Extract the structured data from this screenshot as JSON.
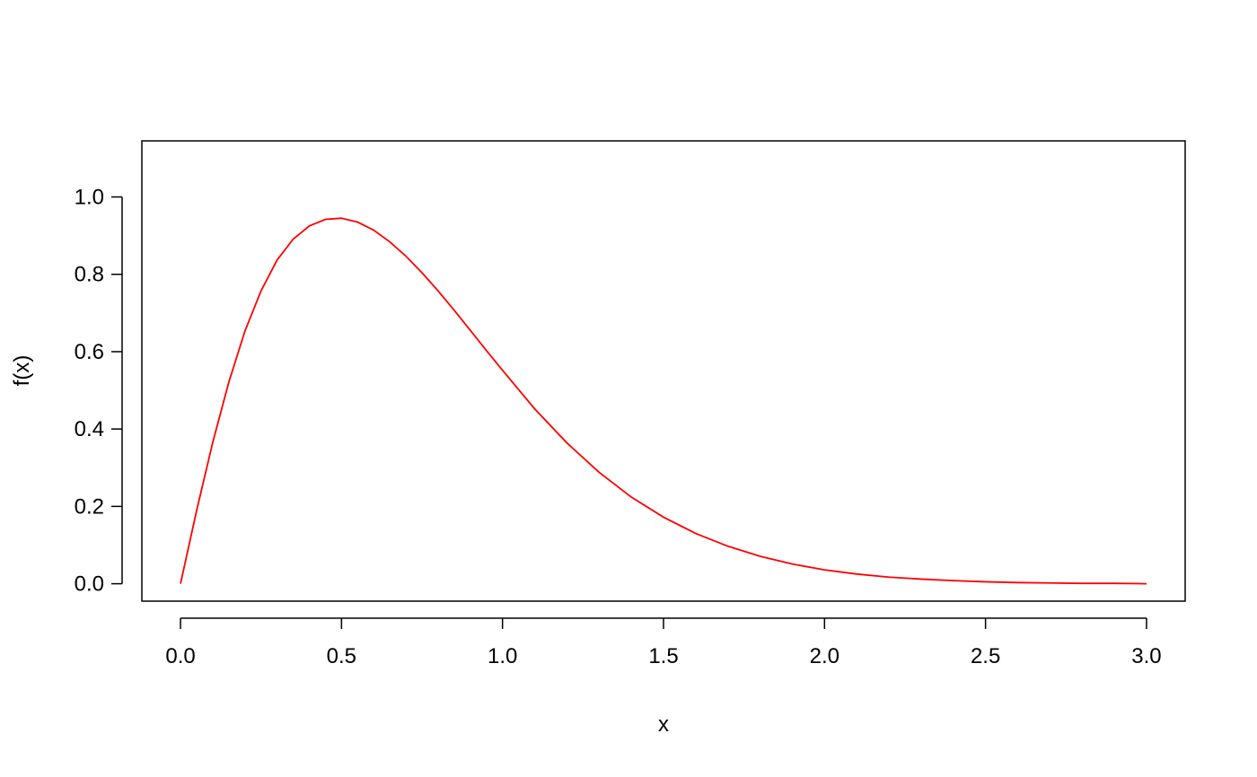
{
  "chart_data": {
    "type": "line",
    "title": "",
    "xlabel": "x",
    "ylabel": "f(x)",
    "xlim": [
      -0.12,
      3.12
    ],
    "ylim": [
      -0.045,
      1.145
    ],
    "x_ticks": [
      0.0,
      0.5,
      1.0,
      1.5,
      2.0,
      2.5,
      3.0
    ],
    "x_tick_labels": [
      "0.0",
      "0.5",
      "1.0",
      "1.5",
      "2.0",
      "2.5",
      "3.0"
    ],
    "y_ticks": [
      0.0,
      0.2,
      0.4,
      0.6,
      0.8,
      1.0
    ],
    "y_tick_labels": [
      "0.0",
      "0.2",
      "0.4",
      "0.6",
      "0.8",
      "1.0"
    ],
    "grid": false,
    "series": [
      {
        "color": "#ff0000",
        "x": [
          0.0,
          0.05,
          0.1,
          0.15,
          0.2,
          0.25,
          0.3,
          0.35,
          0.4,
          0.45,
          0.5,
          0.55,
          0.6,
          0.65,
          0.7,
          0.75,
          0.8,
          0.85,
          0.9,
          0.95,
          1.0,
          1.1,
          1.2,
          1.3,
          1.4,
          1.5,
          1.6,
          1.7,
          1.8,
          1.9,
          2.0,
          2.1,
          2.2,
          2.3,
          2.4,
          2.5,
          2.6,
          2.7,
          2.8,
          2.9,
          3.0
        ],
        "y": [
          0.0,
          0.189,
          0.365,
          0.521,
          0.653,
          0.757,
          0.837,
          0.891,
          0.925,
          0.942,
          0.945,
          0.935,
          0.914,
          0.884,
          0.847,
          0.804,
          0.757,
          0.707,
          0.655,
          0.603,
          0.552,
          0.452,
          0.364,
          0.288,
          0.224,
          0.172,
          0.13,
          0.097,
          0.071,
          0.051,
          0.036,
          0.025,
          0.017,
          0.012,
          0.008,
          0.005,
          0.003,
          0.002,
          0.001,
          0.001,
          0.0
        ]
      }
    ]
  }
}
